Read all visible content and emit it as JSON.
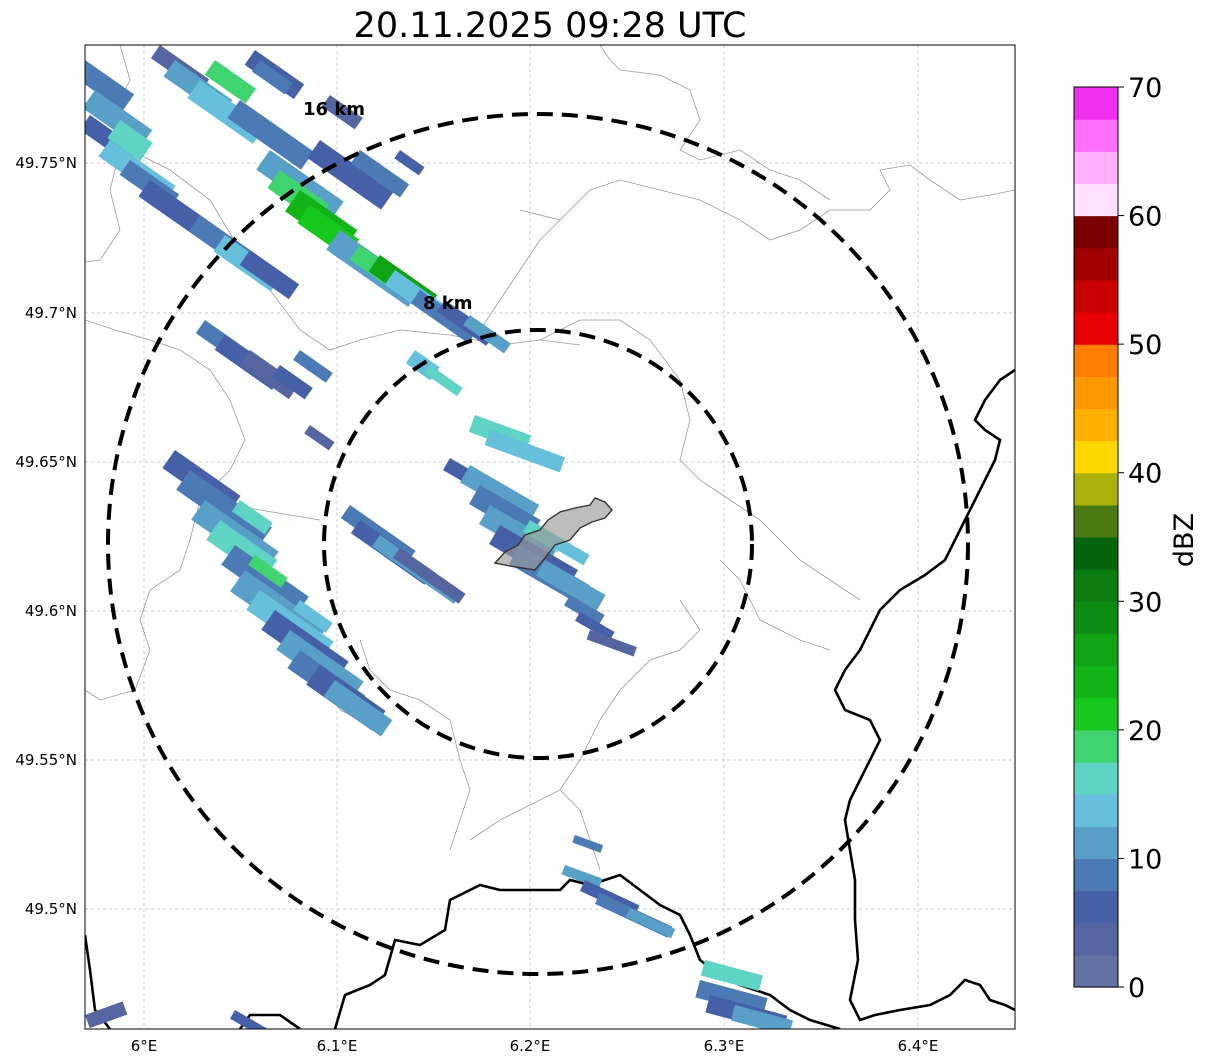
{
  "title": "20.11.2025 09:28 UTC",
  "map": {
    "lon_ticks": [
      "6°E",
      "6.1°E",
      "6.2°E",
      "6.3°E",
      "6.4°E"
    ],
    "lat_ticks": [
      "49.75°N",
      "49.7°N",
      "49.65°N",
      "49.6°N",
      "49.55°N",
      "49.5°N"
    ],
    "range_rings": [
      {
        "label": "8 km",
        "radius_km": 8
      },
      {
        "label": "16 km",
        "radius_km": 16
      }
    ],
    "radar_center": {
      "lon": 6.203,
      "lat": 49.623
    },
    "grid": true,
    "borders": "national borders (thick black) and communal boundaries (thin grey)",
    "highlighted_area": "grey shaded city outline near radar center"
  },
  "colorbar": {
    "label": "dBZ",
    "range": [
      0,
      70
    ],
    "step": 2.5,
    "tick_labels": [
      "0",
      "10",
      "20",
      "30",
      "40",
      "50",
      "60",
      "70"
    ],
    "colors": [
      "#6272a4",
      "#5565a0",
      "#4660a8",
      "#4b7ab4",
      "#59a0c8",
      "#66c0dc",
      "#5fd3c4",
      "#3fd470",
      "#16c81c",
      "#12b418",
      "#10a314",
      "#0c8c12",
      "#0a7c10",
      "#06640e",
      "#4a7a14",
      "#aab00c",
      "#ffd700",
      "#ffb000",
      "#ff9800",
      "#ff7d00",
      "#e60000",
      "#c80000",
      "#a00000",
      "#7a0000",
      "#ffe0ff",
      "#ffb0ff",
      "#ff70ff",
      "#ee30ee"
    ]
  }
}
